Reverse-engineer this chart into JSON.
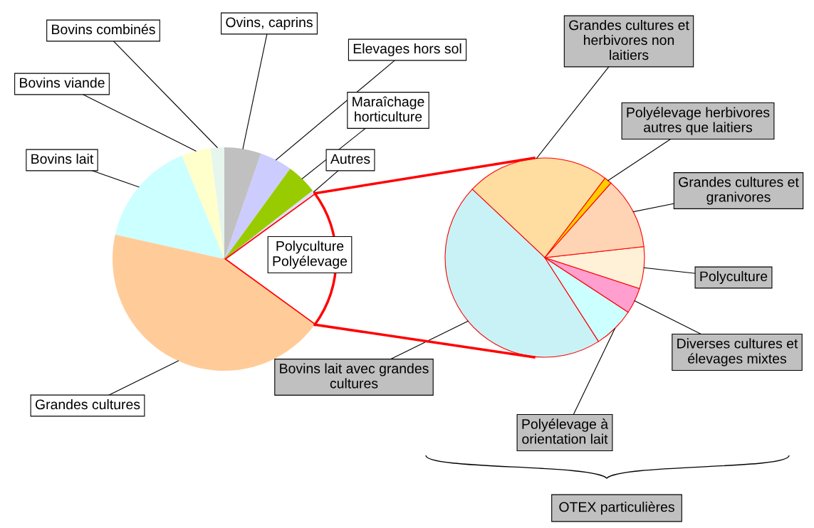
{
  "chart_data": [
    {
      "type": "pie",
      "categories": [
        "Polyculture Polyélevage",
        "Autres",
        "Maraîchage horticulture",
        "Elevages hors sol",
        "Ovins, caprins",
        "Bovins combinés",
        "Bovins viande",
        "Bovins lait",
        "Grandes cultures"
      ],
      "values": [
        20,
        0.5,
        4.5,
        4.7,
        5.3,
        2,
        4.2,
        15.3,
        43.5
      ],
      "colors": [
        "#ffffff",
        "#e0e0ff",
        "#99cc00",
        "#ccccff",
        "#c0c0c0",
        "#e6f6ee",
        "#ffffcc",
        "#ccffff",
        "#ffcc99"
      ]
    },
    {
      "type": "pie",
      "categories": [
        "Grandes cultures et herbivores non laitiers",
        "Bovins lait avec grandes cultures",
        "Polyélevage à orientation lait",
        "Diverses cultures et élevages mixtes",
        "Polyculture",
        "Grandes cultures et granivores",
        "Polyélevage herbivores autres que laitiers"
      ],
      "values": [
        23.3,
        46.1,
        6.7,
        4.2,
        6.8,
        11.7,
        1.2
      ],
      "colors": [
        "#ffdca0",
        "#c8f2f6",
        "#ccffff",
        "#ff9fcf",
        "#fff0d8",
        "#ffd4b4",
        "#ffcc00"
      ],
      "annotations": [
        "OTEX particulières"
      ]
    }
  ]
}
